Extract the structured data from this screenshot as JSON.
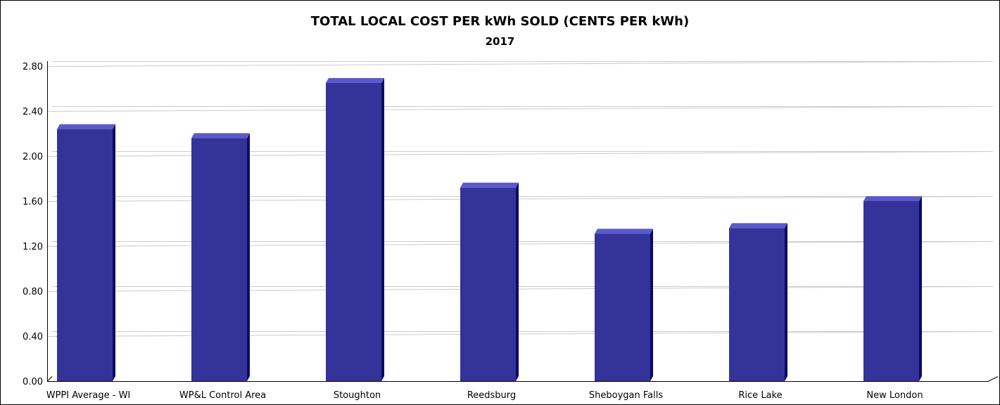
{
  "chart_data": {
    "type": "bar",
    "title": "TOTAL LOCAL COST PER kWh SOLD (CENTS PER kWh)",
    "subtitle": "2017",
    "xlabel": "",
    "ylabel": "",
    "categories": [
      "WPPI Average - WI",
      "WP&L Control Area",
      "Stoughton",
      "Reedsburg",
      "Sheboygan Falls",
      "Rice Lake",
      "New London"
    ],
    "values": [
      2.24,
      2.16,
      2.65,
      1.72,
      1.31,
      1.36,
      1.6
    ],
    "ylim": [
      0,
      2.8
    ],
    "yticks": [
      "0.00",
      "0.40",
      "0.80",
      "1.20",
      "1.60",
      "2.00",
      "2.40",
      "2.80"
    ],
    "ytick_values": [
      0,
      0.4,
      0.8,
      1.2,
      1.6,
      2.0,
      2.4,
      2.8
    ],
    "grid": true,
    "legend": "none",
    "colors": {
      "bar_front": "#333399",
      "bar_top": "#5a5acc",
      "bar_side": "#0b0b66",
      "grid": "#cccccc",
      "axis": "#000000"
    }
  }
}
